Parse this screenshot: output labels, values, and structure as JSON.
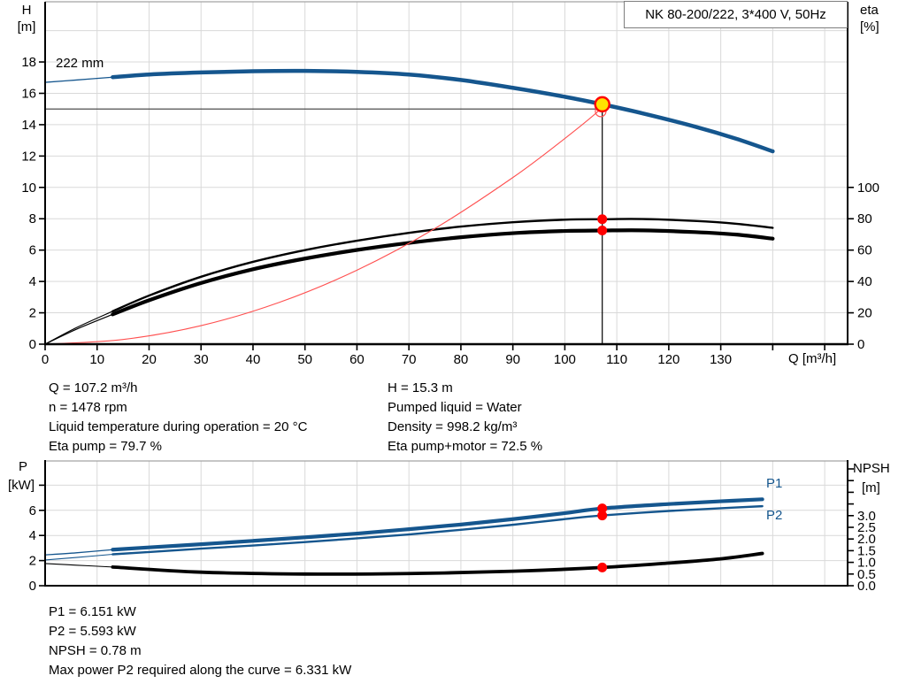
{
  "header": {
    "title": "NK 80-200/222, 3*400 V, 50Hz"
  },
  "labels": {
    "impeller": "222 mm",
    "h_axis": "H",
    "h_unit": "[m]",
    "eta_axis": "eta",
    "eta_unit": "[%]",
    "q_axis": "Q [m³/h]",
    "p_axis": "P",
    "p_unit": "[kW]",
    "npsh_axis": "NPSH",
    "npsh_unit": "[m]",
    "p1": "P1",
    "p2": "P2"
  },
  "info": {
    "left": [
      "Q = 107.2 m³/h",
      "n = 1478 rpm",
      "Liquid temperature during operation = 20 °C",
      "Eta pump = 79.7 %"
    ],
    "right": [
      "H = 15.3 m",
      "Pumped liquid = Water",
      "Density = 998.2 kg/m³",
      "Eta pump+motor = 72.5 %"
    ],
    "bottom": [
      "P1 = 6.151 kW",
      "P2 = 5.593 kW",
      "NPSH = 0.78 m",
      "Max power P2 required along the curve = 6.331 kW"
    ]
  },
  "colors": {
    "curve_blue": "#15568e",
    "curve_black": "#000000",
    "marker_red": "#ff0000",
    "system_red": "#ff5050",
    "duty_yellow": "#ffe100",
    "grid": "#d9d9d9",
    "top_border": "#a3a3a3",
    "axis": "#000000",
    "ref_line": "#3a3a3a"
  },
  "chart_data": [
    {
      "type": "line",
      "title": "Pump curve: head and efficiency vs flow",
      "xlabel": "Q [m³/h]",
      "ylabel_left": "H [m]",
      "ylabel_right": "eta [%]",
      "xlim": [
        0,
        154.4
      ],
      "ylim_left": [
        0,
        21.8
      ],
      "ylim_right": [
        0,
        218
      ],
      "grid": true,
      "x_ticks": [
        0,
        10,
        20,
        30,
        40,
        50,
        60,
        70,
        80,
        90,
        100,
        110,
        120,
        130
      ],
      "x_ticks_unlabeled": [
        140,
        150
      ],
      "h_ticks": [
        0,
        2,
        4,
        6,
        8,
        10,
        12,
        14,
        16,
        18
      ],
      "eta_ticks": [
        0,
        20,
        40,
        60,
        80,
        100
      ],
      "operating_point": {
        "Q": 107.2,
        "H": 15.3,
        "eta_pump": 79.7,
        "eta_pump_motor": 72.5
      },
      "series": [
        {
          "name": "pump-curve-thin",
          "scale": "H",
          "width": 1.3,
          "points": [
            [
              0,
              16.7
            ],
            [
              6,
              16.85
            ],
            [
              13,
              17.03
            ]
          ]
        },
        {
          "name": "pump-curve-222mm",
          "scale": "H",
          "width": 4.5,
          "points": [
            [
              13,
              17.03
            ],
            [
              20,
              17.2
            ],
            [
              30,
              17.33
            ],
            [
              40,
              17.41
            ],
            [
              50,
              17.43
            ],
            [
              60,
              17.37
            ],
            [
              70,
              17.2
            ],
            [
              80,
              16.85
            ],
            [
              90,
              16.35
            ],
            [
              100,
              15.78
            ],
            [
              107.2,
              15.3
            ],
            [
              115,
              14.72
            ],
            [
              125,
              13.88
            ],
            [
              133,
              13.1
            ],
            [
              140,
              12.3
            ]
          ]
        },
        {
          "name": "eta-pump-thin",
          "scale": "eta",
          "width": 1.2,
          "points": [
            [
              0,
              0
            ],
            [
              6,
              10.5
            ],
            [
              13,
              21
            ]
          ]
        },
        {
          "name": "eta-pump-curve",
          "scale": "eta",
          "width": 2.4,
          "points": [
            [
              13,
              21
            ],
            [
              20,
              31
            ],
            [
              30,
              43
            ],
            [
              40,
              52.5
            ],
            [
              50,
              60
            ],
            [
              60,
              66
            ],
            [
              70,
              71
            ],
            [
              80,
              75
            ],
            [
              90,
              77.8
            ],
            [
              100,
              79.4
            ],
            [
              107.2,
              79.7
            ],
            [
              115,
              79.8
            ],
            [
              125,
              78.6
            ],
            [
              133,
              76.8
            ],
            [
              140,
              74.2
            ]
          ]
        },
        {
          "name": "eta-pump-motor-thin",
          "scale": "eta",
          "width": 1.2,
          "points": [
            [
              0,
              0
            ],
            [
              6,
              9.5
            ],
            [
              13,
              19
            ]
          ]
        },
        {
          "name": "eta-pump-motor-curve",
          "scale": "eta",
          "width": 4.2,
          "points": [
            [
              13,
              19
            ],
            [
              20,
              28
            ],
            [
              30,
              39
            ],
            [
              40,
              47.8
            ],
            [
              50,
              54.6
            ],
            [
              60,
              60.1
            ],
            [
              70,
              64.6
            ],
            [
              80,
              68.2
            ],
            [
              90,
              70.8
            ],
            [
              100,
              72.2
            ],
            [
              107.2,
              72.5
            ],
            [
              115,
              72.6
            ],
            [
              125,
              71.5
            ],
            [
              133,
              69.9
            ],
            [
              140,
              67.3
            ]
          ]
        },
        {
          "name": "system-curve",
          "scale": "H",
          "width": 1.1,
          "colorKey": "system_red",
          "points": [
            [
              0,
              0
            ],
            [
              15,
              0.3
            ],
            [
              30,
              1.18
            ],
            [
              45,
              2.66
            ],
            [
              60,
              4.72
            ],
            [
              75,
              7.38
            ],
            [
              90,
              10.63
            ],
            [
              100,
              13.12
            ],
            [
              106.9,
              15.0
            ],
            [
              107.2,
              15.3
            ]
          ]
        }
      ],
      "ref_lines": [
        {
          "name": "head-ref-line",
          "type": "horizontal",
          "value": 15.0,
          "x_from": 0,
          "x_to": 106.9
        },
        {
          "name": "flow-ref-line",
          "type": "vertical",
          "value": 107.2,
          "y_from": 0,
          "y_to": 15.3
        }
      ],
      "markers": [
        {
          "name": "requested-duty-point",
          "scale": "H",
          "x": 106.9,
          "y": 14.85,
          "r": 6,
          "fill": "none",
          "strokeKey": "system_red",
          "sw": 1.2
        },
        {
          "name": "duty-point",
          "scale": "H",
          "x": 107.2,
          "y": 15.3,
          "r": 8,
          "fillKey": "duty_yellow",
          "strokeKey": "marker_red",
          "sw": 2.4
        },
        {
          "name": "eta-pump-point",
          "scale": "eta",
          "x": 107.2,
          "y": 79.7,
          "r": 5.5,
          "fillKey": "marker_red"
        },
        {
          "name": "eta-pump-motor-point",
          "scale": "eta",
          "x": 107.2,
          "y": 72.5,
          "r": 5.5,
          "fillKey": "marker_red"
        }
      ]
    },
    {
      "type": "line",
      "title": "Power and NPSH vs flow",
      "xlabel": "Q [m³/h]",
      "ylabel_left": "P [kW]",
      "ylabel_right": "NPSH [m]",
      "xlim": [
        0,
        154.4
      ],
      "ylim_left": [
        0,
        10
      ],
      "ylim_right": [
        0,
        5.38
      ],
      "grid": true,
      "p_ticks": [
        0,
        2,
        4,
        6
      ],
      "p_ticks_unlabeled": [
        8
      ],
      "npsh_ticks": [
        "0.0",
        "0.5",
        "1.0",
        "1.5",
        "2.0",
        "2.5",
        "3.0"
      ],
      "npsh_ticks_unlabeled": [
        3.5,
        4.0,
        4.5,
        5.0
      ],
      "operating_point": {
        "Q": 107.2,
        "P1": 6.151,
        "P2": 5.593,
        "NPSH": 0.78,
        "P2_max_along_curve": 6.331
      },
      "series": [
        {
          "name": "p1-curve-thin",
          "scale": "P",
          "width": 1.3,
          "points": [
            [
              0,
              2.45
            ],
            [
              6,
              2.62
            ],
            [
              13,
              2.87
            ]
          ]
        },
        {
          "name": "p1-curve",
          "scale": "P",
          "width": 4.2,
          "points": [
            [
              13,
              2.87
            ],
            [
              20,
              3.05
            ],
            [
              30,
              3.3
            ],
            [
              40,
              3.57
            ],
            [
              50,
              3.85
            ],
            [
              60,
              4.15
            ],
            [
              70,
              4.5
            ],
            [
              80,
              4.87
            ],
            [
              90,
              5.3
            ],
            [
              100,
              5.78
            ],
            [
              107.2,
              6.151
            ],
            [
              120,
              6.5
            ],
            [
              130,
              6.72
            ],
            [
              138,
              6.88
            ]
          ]
        },
        {
          "name": "p2-curve-thin",
          "scale": "P",
          "width": 1.1,
          "points": [
            [
              0,
              2.05
            ],
            [
              6,
              2.25
            ],
            [
              13,
              2.5
            ]
          ]
        },
        {
          "name": "p2-curve",
          "scale": "P",
          "width": 2.4,
          "points": [
            [
              13,
              2.5
            ],
            [
              20,
              2.68
            ],
            [
              30,
              2.95
            ],
            [
              40,
              3.2
            ],
            [
              50,
              3.47
            ],
            [
              60,
              3.77
            ],
            [
              70,
              4.08
            ],
            [
              80,
              4.45
            ],
            [
              90,
              4.85
            ],
            [
              100,
              5.3
            ],
            [
              107.2,
              5.593
            ],
            [
              120,
              5.95
            ],
            [
              130,
              6.17
            ],
            [
              138,
              6.33
            ]
          ]
        },
        {
          "name": "npsh-curve-thin",
          "scale": "NPSH",
          "width": 1.1,
          "colorKey": "curve_black",
          "points": [
            [
              0,
              0.95
            ],
            [
              6,
              0.88
            ],
            [
              13,
              0.8
            ]
          ]
        },
        {
          "name": "npsh-curve",
          "scale": "NPSH",
          "width": 3.8,
          "colorKey": "curve_black",
          "points": [
            [
              13,
              0.8
            ],
            [
              30,
              0.58
            ],
            [
              50,
              0.5
            ],
            [
              70,
              0.52
            ],
            [
              90,
              0.62
            ],
            [
              107.2,
              0.78
            ],
            [
              120,
              0.97
            ],
            [
              130,
              1.15
            ],
            [
              138,
              1.38
            ]
          ]
        }
      ],
      "markers": [
        {
          "name": "p1-point",
          "scale": "P",
          "x": 107.2,
          "y": 6.151,
          "r": 5.5,
          "fillKey": "marker_red"
        },
        {
          "name": "p2-point",
          "scale": "P",
          "x": 107.2,
          "y": 5.593,
          "r": 5.5,
          "fillKey": "marker_red"
        },
        {
          "name": "npsh-point",
          "scale": "NPSH",
          "x": 107.2,
          "y": 0.78,
          "r": 5.5,
          "fillKey": "marker_red"
        }
      ]
    }
  ]
}
